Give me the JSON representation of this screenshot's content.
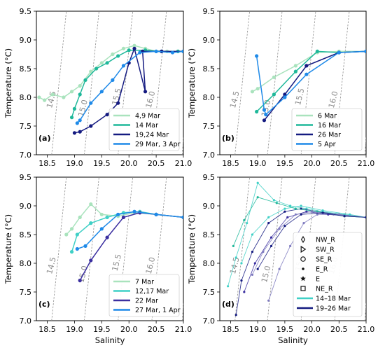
{
  "colors": {
    "iso": "#8c8c8c",
    "mint": "#a9e3bd",
    "teal": "#1fb89a",
    "navy": "#141a80",
    "blue": "#1f8ae8",
    "cyan": "#3fd0c6",
    "indigo": "#3b2fa0",
    "lav": "#7e7abf"
  },
  "chart_data": [
    {
      "type": "line",
      "panel_label": "(a)",
      "xlabel": "",
      "ylabel": "Temperature (°C)",
      "xlim": [
        18.3,
        21.0
      ],
      "ylim": [
        7.0,
        9.5
      ],
      "xticks": [
        "18.5",
        "19.0",
        "19.5",
        "20.0",
        "20.5",
        "21.0"
      ],
      "yticks": [
        "7.0",
        "7.5",
        "8.0",
        "8.5",
        "9.0",
        "9.5"
      ],
      "density_labels": [
        "14.5",
        "15.0",
        "15.5",
        "16.0"
      ],
      "legend_position": "lower-right",
      "series": [
        {
          "name": "4,9 Mar",
          "color": "#a9e3bd",
          "marker": "circle",
          "x": [
            18.35,
            18.45,
            18.6,
            18.8,
            18.95,
            19.1,
            19.3,
            19.5,
            19.7,
            19.9,
            20.1,
            20.3,
            20.5,
            20.7,
            20.9,
            21.0
          ],
          "y": [
            8.0,
            7.95,
            8.05,
            8.0,
            8.1,
            8.2,
            8.45,
            8.6,
            8.75,
            8.85,
            8.9,
            8.85,
            8.8,
            8.8,
            8.8,
            8.8
          ]
        },
        {
          "name": "14 Mar",
          "color": "#1fb89a",
          "marker": "circle",
          "x": [
            18.95,
            19.0,
            19.1,
            19.2,
            19.4,
            19.6,
            19.8,
            20.0,
            20.3,
            20.6,
            20.9,
            21.0
          ],
          "y": [
            7.65,
            7.8,
            8.05,
            8.3,
            8.5,
            8.6,
            8.72,
            8.82,
            8.82,
            8.8,
            8.8,
            8.8
          ]
        },
        {
          "name": "19,24 Mar",
          "color": "#141a80",
          "marker": "circle",
          "x": [
            19.0,
            19.1,
            19.3,
            19.6,
            19.8,
            20.0,
            20.1,
            20.3,
            20.25,
            20.6,
            21.0
          ],
          "y": [
            7.38,
            7.4,
            7.5,
            7.7,
            7.9,
            8.6,
            8.85,
            8.1,
            8.8,
            8.8,
            8.8
          ]
        },
        {
          "name": "29 Mar, 3 Apr",
          "color": "#1f8ae8",
          "marker": "circle",
          "x": [
            19.05,
            19.1,
            19.3,
            19.5,
            19.7,
            19.9,
            20.2,
            20.5,
            20.8,
            21.0
          ],
          "y": [
            7.55,
            7.6,
            7.9,
            8.1,
            8.3,
            8.55,
            8.78,
            8.8,
            8.78,
            8.8
          ]
        }
      ]
    },
    {
      "type": "line",
      "panel_label": "(b)",
      "xlabel": "",
      "ylabel": "Temperature (°C)",
      "xlim": [
        18.3,
        21.0
      ],
      "ylim": [
        7.0,
        9.5
      ],
      "xticks": [
        "18.5",
        "19.0",
        "19.5",
        "20.0",
        "20.5",
        "21.0"
      ],
      "yticks": [
        "7.0",
        "7.5",
        "8.0",
        "8.5",
        "9.0",
        "9.5"
      ],
      "density_labels": [
        "14.5",
        "15.0",
        "15.5",
        "16.0"
      ],
      "legend_position": "lower-right",
      "series": [
        {
          "name": "6 Mar",
          "color": "#a9e3bd",
          "marker": "circle",
          "x": [
            18.9,
            19.0,
            19.3,
            19.7,
            20.1,
            20.5,
            21.0
          ],
          "y": [
            8.1,
            8.15,
            8.35,
            8.55,
            8.78,
            8.8,
            8.8
          ]
        },
        {
          "name": "16 Mar",
          "color": "#1fb89a",
          "marker": "circle",
          "x": [
            18.98,
            19.3,
            19.7,
            20.1,
            20.5,
            21.0
          ],
          "y": [
            7.75,
            8.05,
            8.45,
            8.8,
            8.78,
            8.8
          ]
        },
        {
          "name": "26 Mar",
          "color": "#141a80",
          "marker": "circle",
          "x": [
            19.12,
            19.5,
            19.9,
            20.5,
            21.0
          ],
          "y": [
            7.6,
            8.05,
            8.55,
            8.78,
            8.8
          ]
        },
        {
          "name": "5 Apr",
          "color": "#1f8ae8",
          "marker": "circle",
          "x": [
            18.98,
            19.12,
            19.15,
            19.5,
            19.9,
            20.5,
            21.0
          ],
          "y": [
            8.72,
            7.78,
            7.7,
            8.0,
            8.4,
            8.78,
            8.8
          ]
        }
      ]
    },
    {
      "type": "line",
      "panel_label": "(c)",
      "xlabel": "Salinity",
      "ylabel": "Temperature (°C)",
      "xlim": [
        18.3,
        21.0
      ],
      "ylim": [
        7.0,
        9.5
      ],
      "xticks": [
        "18.5",
        "19.0",
        "19.5",
        "20.0",
        "20.5",
        "21.0"
      ],
      "yticks": [
        "7.0",
        "7.5",
        "8.0",
        "8.5",
        "9.0",
        "9.5"
      ],
      "density_labels": [
        "14.5",
        "15.0",
        "15.5",
        "16.0"
      ],
      "legend_position": "lower-right",
      "series": [
        {
          "name": "7 Mar",
          "color": "#a9e3bd",
          "marker": "circle",
          "x": [
            18.85,
            18.95,
            19.1,
            19.3,
            19.5,
            19.8,
            20.1,
            20.5,
            21.0
          ],
          "y": [
            8.5,
            8.6,
            8.8,
            9.03,
            8.85,
            8.82,
            8.88,
            8.85,
            8.8
          ]
        },
        {
          "name": "12,17 Mar",
          "color": "#3fd0c6",
          "marker": "circle",
          "x": [
            18.95,
            19.05,
            19.3,
            19.6,
            19.9,
            20.2,
            20.5,
            21.0
          ],
          "y": [
            8.2,
            8.5,
            8.7,
            8.8,
            8.88,
            8.9,
            8.85,
            8.8
          ]
        },
        {
          "name": "22 Mar",
          "color": "#3b2fa0",
          "marker": "circle",
          "x": [
            19.1,
            19.3,
            19.6,
            19.9,
            20.2,
            20.5,
            21.0
          ],
          "y": [
            7.7,
            8.05,
            8.45,
            8.8,
            8.88,
            8.85,
            8.8
          ]
        },
        {
          "name": "27 Mar, 1 Apr",
          "color": "#1f8ae8",
          "marker": "circle",
          "x": [
            19.05,
            19.2,
            19.5,
            19.8,
            20.1,
            20.5,
            21.0
          ],
          "y": [
            8.25,
            8.3,
            8.6,
            8.85,
            8.9,
            8.85,
            8.8
          ]
        }
      ]
    },
    {
      "type": "scatter",
      "panel_label": "(d)",
      "xlabel": "Salinity",
      "ylabel": "Temperature (°C)",
      "xlim": [
        18.3,
        21.0
      ],
      "ylim": [
        7.0,
        9.5
      ],
      "xticks": [
        "18.5",
        "19.0",
        "19.5",
        "20.0",
        "20.5",
        "21.0"
      ],
      "yticks": [
        "7.0",
        "7.5",
        "8.0",
        "8.5",
        "9.0",
        "9.5"
      ],
      "density_labels": [
        "14.5",
        "15.0",
        "15.5",
        "16.0"
      ],
      "legend_position": "lower-right",
      "legend_markers": [
        {
          "name": "NW_R",
          "marker": "diamond"
        },
        {
          "name": "SW_R",
          "marker": "triangle"
        },
        {
          "name": "SE_R",
          "marker": "circle"
        },
        {
          "name": "E_R",
          "marker": "dot"
        },
        {
          "name": "E",
          "marker": "star"
        },
        {
          "name": "NE_R",
          "marker": "square"
        }
      ],
      "series": [
        {
          "name": "14–18 Mar",
          "color": "#3fd0c6",
          "x": [
            18.45,
            18.6,
            18.8,
            19.0,
            19.3,
            19.6,
            19.9,
            20.2,
            20.6,
            21.0
          ],
          "y": [
            7.6,
            8.1,
            8.7,
            9.4,
            9.1,
            9.0,
            8.95,
            8.9,
            8.85,
            8.8
          ]
        },
        {
          "name": "19–26 Mar",
          "color": "#141a80",
          "x": [
            18.6,
            18.7,
            18.9,
            19.2,
            19.5,
            19.8,
            20.1,
            20.5,
            21.0
          ],
          "y": [
            7.1,
            7.7,
            8.2,
            8.7,
            8.9,
            8.95,
            8.9,
            8.85,
            8.8
          ]
        },
        {
          "name": "",
          "color": "#7e7abf",
          "x": [
            19.2,
            19.4,
            19.6,
            19.85,
            20.1,
            20.5,
            21.0
          ],
          "y": [
            7.35,
            7.9,
            8.3,
            8.7,
            8.85,
            8.85,
            8.8
          ]
        },
        {
          "name": "",
          "color": "#3fd0c6",
          "x": [
            18.7,
            18.9,
            19.2,
            19.5,
            19.8,
            20.2,
            20.7,
            21.0
          ],
          "y": [
            8.0,
            8.5,
            8.8,
            8.95,
            9.0,
            8.92,
            8.85,
            8.8
          ]
        },
        {
          "name": "",
          "color": "#3b2fa0",
          "x": [
            18.75,
            18.95,
            19.25,
            19.55,
            19.9,
            20.3,
            21.0
          ],
          "y": [
            7.5,
            8.0,
            8.45,
            8.8,
            8.9,
            8.85,
            8.8
          ]
        },
        {
          "name": "",
          "color": "#1fb89a",
          "x": [
            18.55,
            18.75,
            19.0,
            19.35,
            19.7,
            20.1,
            20.6,
            21.0
          ],
          "y": [
            8.3,
            8.75,
            9.15,
            9.05,
            8.95,
            8.9,
            8.82,
            8.8
          ]
        },
        {
          "name": "",
          "color": "#7e7abf",
          "x": [
            18.9,
            19.1,
            19.4,
            19.7,
            20.0,
            20.4,
            21.0
          ],
          "y": [
            7.8,
            8.2,
            8.6,
            8.85,
            8.9,
            8.85,
            8.8
          ]
        },
        {
          "name": "",
          "color": "#141a80",
          "x": [
            19.0,
            19.25,
            19.5,
            19.8,
            20.2,
            20.6,
            21.0
          ],
          "y": [
            7.9,
            8.3,
            8.65,
            8.85,
            8.88,
            8.82,
            8.8
          ]
        }
      ]
    }
  ]
}
